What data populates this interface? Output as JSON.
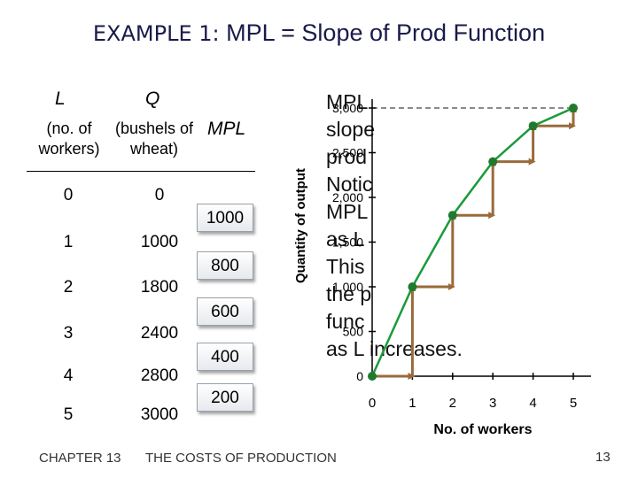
{
  "title": {
    "prefix": "EXAMPLE 1:",
    "text": "MPL = Slope of Prod Function"
  },
  "table": {
    "col_L": "L",
    "col_Q": "Q",
    "col_L_sub": "(no. of workers)",
    "col_Q_sub": "(bushels of wheat)",
    "col_MPL": "MPL",
    "rows": [
      {
        "L": "0",
        "Q": "0"
      },
      {
        "L": "1",
        "Q": "1000"
      },
      {
        "L": "2",
        "Q": "1800"
      },
      {
        "L": "3",
        "Q": "2400"
      },
      {
        "L": "4",
        "Q": "2800"
      },
      {
        "L": "5",
        "Q": "3000"
      }
    ],
    "mpl": [
      "1000",
      "800",
      "600",
      "400",
      "200"
    ]
  },
  "notes": [
    "MPL",
    "slope",
    "prod",
    "Notic",
    "MPL",
    "as L",
    "This",
    "the p",
    "func",
    "as L increases."
  ],
  "chart_data": {
    "type": "line",
    "x": [
      0,
      1,
      2,
      3,
      4,
      5
    ],
    "y": [
      0,
      1000,
      1800,
      2400,
      2800,
      3000
    ],
    "xlabel": "No. of workers",
    "ylabel": "Quantity of output",
    "xticks": [
      "0",
      "1",
      "2",
      "3",
      "4",
      "5"
    ],
    "yticks": [
      "0",
      "500",
      "1,000",
      "1,500",
      "2,000",
      "2,500",
      "3,000"
    ],
    "xlim": [
      0,
      5
    ],
    "ylim": [
      0,
      3000
    ],
    "line_color": "#1a9a3a",
    "step_color": "#9a6a3a",
    "grid": "dashed at 3,000 only"
  },
  "footer": {
    "chapter": "CHAPTER 13",
    "subject": "THE COSTS OF PRODUCTION",
    "page": "13"
  }
}
